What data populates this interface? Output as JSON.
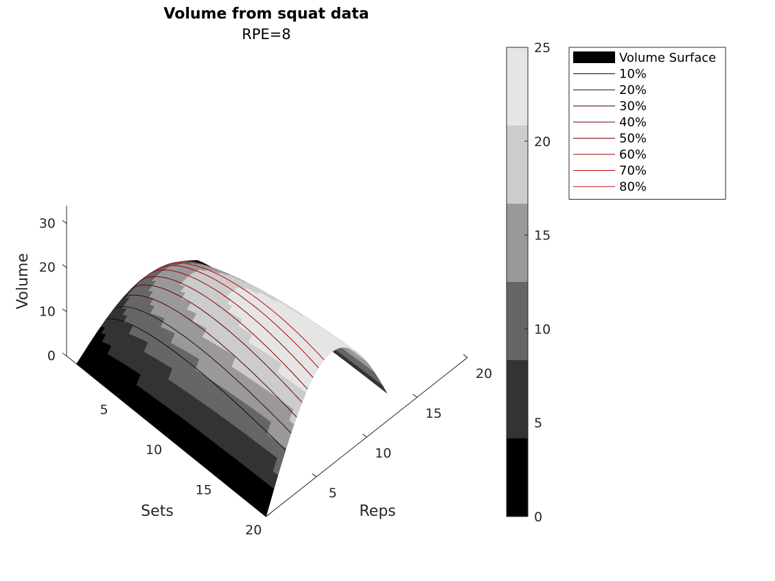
{
  "chart_data": {
    "type": "surface3d",
    "title": "Volume from squat data",
    "subtitle": "RPE=8",
    "xlabel": "Sets",
    "ylabel": "Reps",
    "zlabel": "Volume",
    "x_ticks": [
      5,
      10,
      15,
      20
    ],
    "y_ticks": [
      5,
      10,
      15,
      20
    ],
    "z_ticks": [
      0,
      10,
      20,
      30
    ],
    "xlim": [
      0,
      20
    ],
    "ylim": [
      0,
      20
    ],
    "zlim": [
      0,
      34
    ],
    "colorbar": {
      "ticks": [
        0,
        5,
        10,
        15,
        20,
        25
      ],
      "limits": [
        0,
        25
      ],
      "colors": [
        "#000000",
        "#333333",
        "#666666",
        "#999999",
        "#cccccc",
        "#e5e5e5"
      ]
    },
    "legend": {
      "location": "top-right",
      "entries": [
        "Volume Surface",
        "10%",
        "20%",
        "30%",
        "40%",
        "50%",
        "60%",
        "70%",
        "80%"
      ],
      "line_colors": [
        "#000000",
        "#1a0000",
        "#330000",
        "#4d0000",
        "#660000",
        "#800000",
        "#990000",
        "#b30000",
        "#cc0000"
      ]
    },
    "contour_levels_percent": [
      10,
      20,
      30,
      40,
      50,
      60,
      70,
      80
    ],
    "surface": {
      "sets": [
        1,
        2,
        3,
        4,
        5,
        6,
        7,
        8,
        9,
        10,
        11,
        12,
        13,
        14,
        15,
        16,
        17,
        18,
        19,
        20
      ],
      "reps_start": 0,
      "reps_end_by_set": 12,
      "volume_scale": 34
    }
  }
}
